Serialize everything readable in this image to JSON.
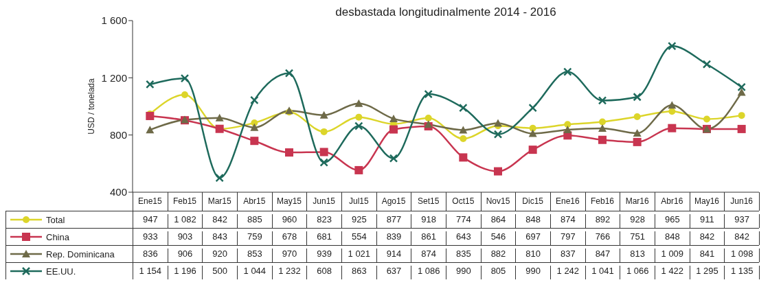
{
  "chart_data": {
    "type": "line",
    "title": "desbastada longitudinalmente 2014 - 2016",
    "ylabel": "USD / tonelada",
    "categories": [
      "Ene15",
      "Feb15",
      "Mar15",
      "Abr15",
      "May15",
      "Jun15",
      "Jul15",
      "Ago15",
      "Set15",
      "Oct15",
      "Nov15",
      "Dic15",
      "Ene16",
      "Feb16",
      "Mar16",
      "Abr16",
      "May16",
      "Jun16"
    ],
    "ylim": [
      400,
      1600
    ],
    "yticks": [
      400,
      800,
      {
        "value": 1200,
        "label": "1 200"
      },
      {
        "value": 1600,
        "label": "1 600"
      }
    ],
    "legend": "bottom left",
    "series": [
      {
        "name": "Total",
        "color": "#dcd52a",
        "marker": "circle",
        "values": [
          947,
          1082,
          842,
          885,
          960,
          823,
          925,
          877,
          918,
          774,
          864,
          848,
          874,
          892,
          928,
          965,
          911,
          937
        ],
        "value_labels": [
          "947",
          "1 082",
          "842",
          "885",
          "960",
          "823",
          "925",
          "877",
          "918",
          "774",
          "864",
          "848",
          "874",
          "892",
          "928",
          "965",
          "911",
          "937"
        ]
      },
      {
        "name": "China",
        "color": "#c83550",
        "marker": "square",
        "values": [
          933,
          903,
          843,
          759,
          678,
          681,
          554,
          839,
          861,
          643,
          546,
          697,
          797,
          766,
          751,
          848,
          842,
          842
        ],
        "value_labels": [
          "933",
          "903",
          "843",
          "759",
          "678",
          "681",
          "554",
          "839",
          "861",
          "643",
          "546",
          "697",
          "797",
          "766",
          "751",
          "848",
          "842",
          "842"
        ]
      },
      {
        "name": "Rep. Dominicana",
        "color": "#6e6a48",
        "marker": "triangle",
        "values": [
          836,
          906,
          920,
          853,
          970,
          939,
          1021,
          914,
          874,
          835,
          882,
          810,
          837,
          847,
          813,
          1009,
          841,
          1098
        ],
        "value_labels": [
          "836",
          "906",
          "920",
          "853",
          "970",
          "939",
          "1 021",
          "914",
          "874",
          "835",
          "882",
          "810",
          "837",
          "847",
          "813",
          "1 009",
          "841",
          "1 098"
        ]
      },
      {
        "name": "EE.UU.",
        "color": "#1e6a5c",
        "marker": "cross",
        "values": [
          1154,
          1196,
          500,
          1044,
          1232,
          608,
          863,
          637,
          1086,
          990,
          805,
          990,
          1242,
          1041,
          1066,
          1422,
          1295,
          1135
        ],
        "value_labels": [
          "1 154",
          "1 196",
          "500",
          "1 044",
          "1 232",
          "608",
          "863",
          "637",
          "1 086",
          "990",
          "805",
          "990",
          "1 242",
          "1 041",
          "1 066",
          "1 422",
          "1 295",
          "1 135"
        ]
      }
    ]
  }
}
